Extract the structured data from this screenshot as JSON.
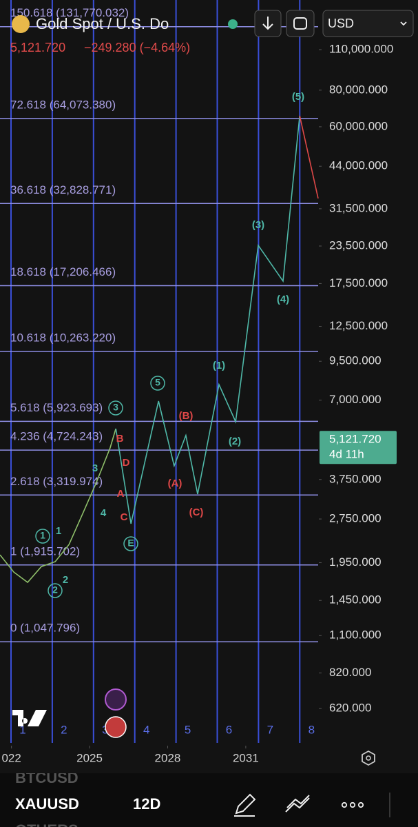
{
  "header": {
    "symbol": "Gold Spot / U.S. Do",
    "change": "−249.280 (−4.64%)",
    "currency": "USD"
  },
  "chart_data": {
    "type": "line",
    "log_scale": true,
    "xlim": [
      2021.56,
      2033.78
    ],
    "ylim": [
      468,
      162500
    ],
    "xticks": [
      {
        "value": 2022,
        "label": "022"
      },
      2025,
      2028,
      2031
    ],
    "yticks": [
      {
        "value": 110000,
        "label": "110,000.000"
      },
      {
        "value": 80000,
        "label": "80,000.000"
      },
      {
        "value": 60000,
        "label": "60,000.000"
      },
      {
        "value": 44000,
        "label": "44,000.000"
      },
      {
        "value": 31500,
        "label": "31,500.000"
      },
      {
        "value": 23500,
        "label": "23,500.000"
      },
      {
        "value": 17500,
        "label": "17,500.000"
      },
      {
        "value": 12500,
        "label": "12,500.000"
      },
      {
        "value": 9500,
        "label": "9,500.000"
      },
      {
        "value": 7000,
        "label": "7,000.000"
      },
      {
        "value": 3750,
        "label": "3,750.000"
      },
      {
        "value": 2750,
        "label": "2,750.000"
      },
      {
        "value": 1950,
        "label": "1,950.000"
      },
      {
        "value": 1450,
        "label": "1,450.000"
      },
      {
        "value": 1100,
        "label": "1,100.000"
      },
      {
        "value": 820,
        "label": "820.000"
      },
      {
        "value": 620,
        "label": "620.000"
      }
    ],
    "fib_levels": [
      {
        "value": 131770.032,
        "label": "150.618 (131,770.032)"
      },
      {
        "value": 64073.38,
        "label": "72.618 (64,073.380)"
      },
      {
        "value": 32828.771,
        "label": "36.618 (32,828.771)"
      },
      {
        "value": 17206.466,
        "label": "18.618 (17,206.466)"
      },
      {
        "value": 10263.22,
        "label": "10.618 (10,263.220)"
      },
      {
        "value": 5923.693,
        "label": "5.618 (5,923.693)"
      },
      {
        "value": 4724.243,
        "label": "4.236 (4,724.243)"
      },
      {
        "value": 3319.974,
        "label": "2.618 (3,319.974)"
      },
      {
        "value": 1915.702,
        "label": "1 (1,915.702)"
      },
      {
        "value": 1047.796,
        "label": "0 (1,047.796)"
      }
    ],
    "series": [
      {
        "color": "#8fbf6a",
        "x": [
          2021.56,
          2022.09,
          2022.62,
          2023.15,
          2023.68,
          2024.21,
          2024.74,
          2025.26,
          2025.79,
          2026.01
        ],
        "values": [
          2075,
          1812,
          1671,
          1892,
          1966,
          2250,
          2872,
          3664,
          4806,
          5594
        ]
      },
      {
        "color": "#4fb8a8",
        "x": [
          2026.01,
          2026.59,
          2027.65,
          2028.25,
          2028.7,
          2029.15,
          2029.97,
          2030.61,
          2031.48,
          2032.43,
          2033.07
        ],
        "values": [
          5594,
          2649,
          6947,
          4174,
          5300,
          3343,
          7912,
          5904,
          23630,
          17835,
          65450
        ]
      },
      {
        "color": "#e04848",
        "x": [
          2033.07,
          2033.78
        ],
        "values": [
          65450,
          34170
        ]
      }
    ],
    "last_price": {
      "value": 5121.72,
      "label": "5,121.720"
    },
    "countdown": "4d 11h",
    "last_price_color": "#4dab8f",
    "cycle_labels": [
      "1",
      "2",
      "3",
      "4",
      "5",
      "6",
      "7",
      "8"
    ],
    "wave_labels": [
      {
        "text": "1",
        "color": "#4fb8a8"
      },
      {
        "text": "1",
        "color": "#4fb8a8"
      },
      {
        "text": "2",
        "color": "#4fb8a8"
      },
      {
        "text": "2",
        "color": "#4fb8a8"
      },
      {
        "text": "3",
        "color": "#4fb8a8"
      },
      {
        "text": "4",
        "color": "#4fb8a8"
      },
      {
        "text": "3",
        "color": "#4fb8a8"
      },
      {
        "text": "5",
        "color": "#4fb8a8"
      },
      {
        "text": "E",
        "color": "#4fb8a8"
      },
      {
        "text": "(1)",
        "color": "#4fb8a8"
      },
      {
        "text": "(2)",
        "color": "#4fb8a8"
      },
      {
        "text": "(3)",
        "color": "#4fb8a8"
      },
      {
        "text": "(4)",
        "color": "#4fb8a8"
      },
      {
        "text": "(5)",
        "color": "#4fb8a8"
      },
      {
        "text": "B",
        "color": "#e04848"
      },
      {
        "text": "D",
        "color": "#e04848"
      },
      {
        "text": "A",
        "color": "#e04848"
      },
      {
        "text": "C",
        "color": "#e04848"
      },
      {
        "text": "(A)",
        "color": "#e04848"
      },
      {
        "text": "(B)",
        "color": "#e04848"
      },
      {
        "text": "(C)",
        "color": "#e04848"
      }
    ]
  },
  "toolbar": {
    "symbols": [
      "BTCUSD",
      "XAUUSD",
      "OTHERS"
    ],
    "interval": "12D"
  }
}
